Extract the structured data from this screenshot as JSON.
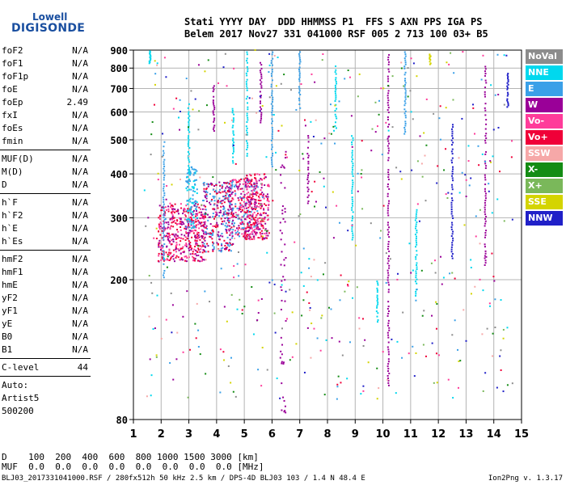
{
  "logo": {
    "line1": "Lowell",
    "line2": "DIGISONDE"
  },
  "header": {
    "row1": "Stati YYYY DAY  DDD HHMMSS P1  FFS S AXN PPS IGA PS",
    "row2": "Belem 2017 Nov27 331 041000 RSF 005 2 713 100 03+ B5"
  },
  "params": [
    {
      "group": [
        {
          "name": "foF2",
          "value": "N/A"
        },
        {
          "name": "foF1",
          "value": "N/A"
        },
        {
          "name": "foF1p",
          "value": "N/A"
        },
        {
          "name": "foE",
          "value": "N/A"
        },
        {
          "name": "foEp",
          "value": "2.49"
        },
        {
          "name": "fxI",
          "value": "N/A"
        },
        {
          "name": "foEs",
          "value": "N/A"
        },
        {
          "name": "fmin",
          "value": "N/A"
        }
      ]
    },
    {
      "group": [
        {
          "name": "MUF(D)",
          "value": "N/A"
        },
        {
          "name": "M(D)",
          "value": "N/A"
        },
        {
          "name": "D",
          "value": "N/A"
        }
      ]
    },
    {
      "group": [
        {
          "name": "h`F",
          "value": "N/A"
        },
        {
          "name": "h`F2",
          "value": "N/A"
        },
        {
          "name": "h`E",
          "value": "N/A"
        },
        {
          "name": "h`Es",
          "value": "N/A"
        }
      ]
    },
    {
      "group": [
        {
          "name": "hmF2",
          "value": "N/A"
        },
        {
          "name": "hmF1",
          "value": "N/A"
        },
        {
          "name": "hmE",
          "value": "N/A"
        },
        {
          "name": "yF2",
          "value": "N/A"
        },
        {
          "name": "yF1",
          "value": "N/A"
        },
        {
          "name": "yE",
          "value": "N/A"
        },
        {
          "name": "B0",
          "value": "N/A"
        },
        {
          "name": "B1",
          "value": "N/A"
        }
      ]
    },
    {
      "group": [
        {
          "name": "C-level",
          "value": "44"
        }
      ]
    }
  ],
  "auto": [
    "Auto:",
    "Artist5",
    "500200"
  ],
  "legend": [
    {
      "label": "NoVal",
      "color": "#8c8c8c"
    },
    {
      "label": "NNE",
      "color": "#00d8ee"
    },
    {
      "label": "E",
      "color": "#3aa0e8"
    },
    {
      "label": "W",
      "color": "#9a0098"
    },
    {
      "label": "Vo-",
      "color": "#ff3c9a"
    },
    {
      "label": "Vo+",
      "color": "#f00038"
    },
    {
      "label": "SSW",
      "color": "#f6a8a8"
    },
    {
      "label": "X-",
      "color": "#148c14"
    },
    {
      "label": "X+",
      "color": "#7ab85a"
    },
    {
      "label": "SSE",
      "color": "#d4d400"
    },
    {
      "label": "NNW",
      "color": "#2020c8"
    }
  ],
  "bottom": {
    "row1": "D    100  200  400  600  800 1000 1500 3000 [km]",
    "row2": "MUF  0.0  0.0  0.0  0.0  0.0  0.0  0.0  0.0 [MHz]"
  },
  "footer": "BLJ03_2017331041000.RSF / 280fx512h 50 kHz 2.5 km / DPS-4D BLJ03 103 / 1.4 N 48.4 E",
  "version": "Ion2Png v. 1.3.17",
  "chart_data": {
    "type": "scatter",
    "xlabel": "",
    "ylabel": "",
    "xlim": [
      1,
      15
    ],
    "ylim": [
      80,
      900
    ],
    "y_scale": "log",
    "grid": true,
    "x_ticks": [
      1,
      2,
      3,
      4,
      5,
      6,
      7,
      8,
      9,
      10,
      11,
      12,
      13,
      14,
      15
    ],
    "y_ticks": [
      80,
      200,
      300,
      400,
      500,
      600,
      700,
      800,
      900
    ],
    "legend_position": "right",
    "dense_clusters": [
      {
        "x_range": [
          1.9,
          3.6
        ],
        "h_range": [
          225,
          330
        ],
        "dir": [
          "Vo+",
          "W",
          "Vo-"
        ]
      },
      {
        "x_range": [
          2.9,
          3.3
        ],
        "h_range": [
          280,
          420
        ],
        "dir": [
          "E",
          "NNE"
        ]
      },
      {
        "x_range": [
          3.5,
          4.6
        ],
        "h_range": [
          240,
          380
        ],
        "dir": [
          "Vo+",
          "W",
          "E"
        ]
      },
      {
        "x_range": [
          4.4,
          5.5
        ],
        "h_range": [
          260,
          390
        ],
        "dir": [
          "Vo+",
          "W",
          "Vo-",
          "E"
        ]
      },
      {
        "x_range": [
          5.0,
          5.9
        ],
        "h_range": [
          260,
          400
        ],
        "dir": [
          "Vo+",
          "W",
          "Vo-"
        ]
      },
      {
        "x_range": [
          6.3,
          6.5
        ],
        "h_range": [
          80,
          520
        ],
        "dir": [
          "W"
        ]
      }
    ],
    "vertical_streaks": [
      {
        "x": 1.6,
        "h_range": [
          820,
          900
        ],
        "dir": "NNE"
      },
      {
        "x": 2.1,
        "h_range": [
          200,
          500
        ],
        "dir": "E"
      },
      {
        "x": 3.0,
        "h_range": [
          400,
          640
        ],
        "dir": "NNE"
      },
      {
        "x": 3.9,
        "h_range": [
          530,
          720
        ],
        "dir": "W"
      },
      {
        "x": 4.6,
        "h_range": [
          430,
          620
        ],
        "dir": "NNE"
      },
      {
        "x": 5.1,
        "h_range": [
          450,
          900
        ],
        "dir": "NNE"
      },
      {
        "x": 5.6,
        "h_range": [
          560,
          860
        ],
        "dir": "W"
      },
      {
        "x": 6.0,
        "h_range": [
          420,
          900
        ],
        "dir": "E"
      },
      {
        "x": 7.0,
        "h_range": [
          600,
          900
        ],
        "dir": "E"
      },
      {
        "x": 7.3,
        "h_range": [
          330,
          520
        ],
        "dir": "W"
      },
      {
        "x": 8.3,
        "h_range": [
          540,
          820
        ],
        "dir": "NNE"
      },
      {
        "x": 8.9,
        "h_range": [
          260,
          520
        ],
        "dir": "NNE"
      },
      {
        "x": 9.8,
        "h_range": [
          150,
          200
        ],
        "dir": "NNE"
      },
      {
        "x": 10.2,
        "h_range": [
          100,
          900
        ],
        "dir": "W"
      },
      {
        "x": 10.8,
        "h_range": [
          520,
          900
        ],
        "dir": "E"
      },
      {
        "x": 11.2,
        "h_range": [
          180,
          320
        ],
        "dir": "NNE"
      },
      {
        "x": 11.7,
        "h_range": [
          820,
          880
        ],
        "dir": "SSE"
      },
      {
        "x": 12.5,
        "h_range": [
          230,
          560
        ],
        "dir": "NNW"
      },
      {
        "x": 13.7,
        "h_range": [
          220,
          820
        ],
        "dir": "W"
      },
      {
        "x": 14.5,
        "h_range": [
          620,
          780
        ],
        "dir": "NNW"
      }
    ]
  }
}
